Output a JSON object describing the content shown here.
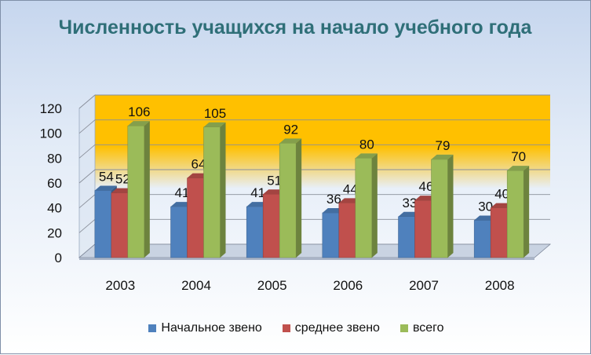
{
  "chart_data": {
    "type": "bar",
    "title": "Численность учащихся на начало учебного года",
    "xlabel": "",
    "ylabel": "",
    "categories": [
      "2003",
      "2004",
      "2005",
      "2006",
      "2007",
      "2008"
    ],
    "series": [
      {
        "name": "Начальное звено",
        "color": "#4f81bd",
        "values": [
          54,
          41,
          41,
          36,
          33,
          30
        ]
      },
      {
        "name": "среднее звено",
        "color": "#c0504d",
        "values": [
          52,
          64,
          51,
          44,
          46,
          40
        ]
      },
      {
        "name": "всего",
        "color": "#9bbb59",
        "values": [
          106,
          105,
          92,
          80,
          79,
          70
        ]
      }
    ],
    "ylim": [
      0,
      120
    ],
    "yticks": [
      0,
      20,
      40,
      60,
      80,
      100,
      120
    ],
    "grid": true,
    "legend_position": "bottom",
    "data_labels": true
  }
}
